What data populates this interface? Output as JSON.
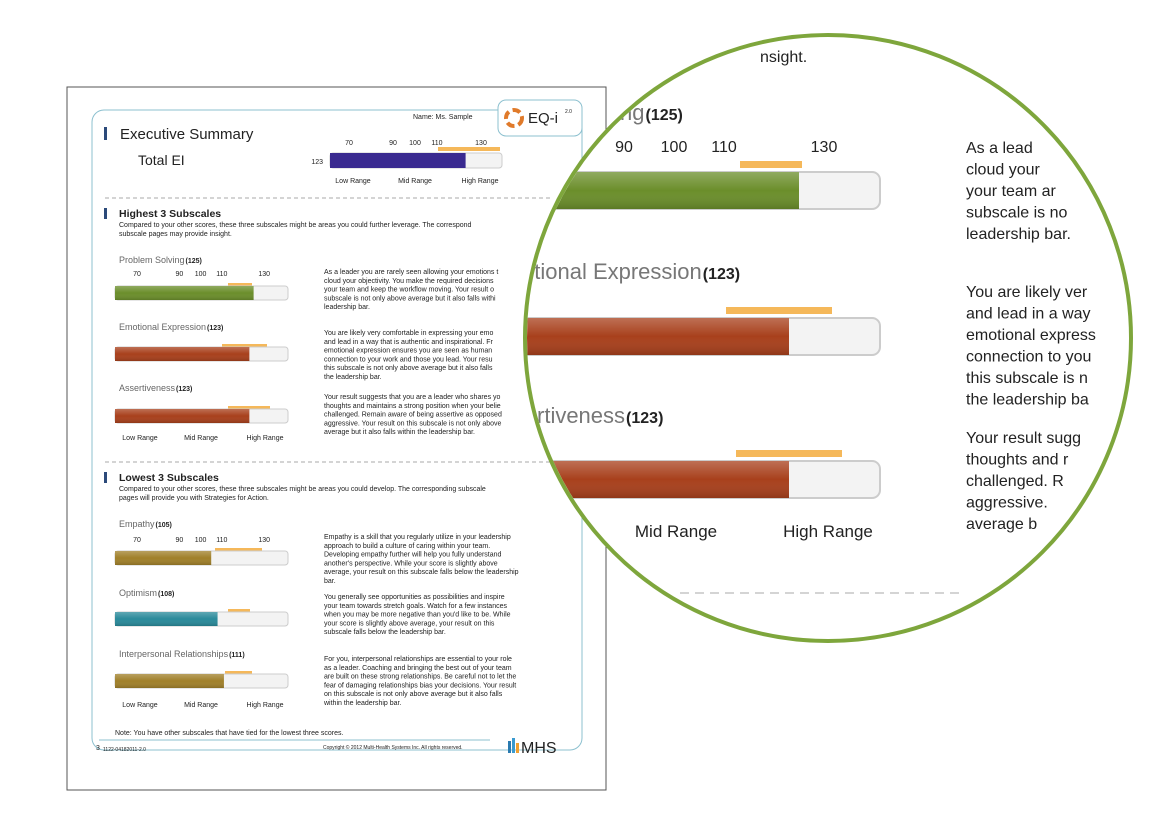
{
  "header": {
    "name": "Name: Ms. Sample",
    "logo": "EQ-i",
    "logo_sup": "2.0",
    "title": "Executive Summary",
    "subtitle": "Total EI"
  },
  "total_ei": {
    "score": 123,
    "score_label": "123",
    "ticks": [
      70,
      90,
      100,
      110,
      130
    ],
    "ranges": [
      "Low Range",
      "Mid Range",
      "High Range"
    ]
  },
  "highest": {
    "title": "Highest 3 Subscales",
    "description": [
      "Compared to your other scores, these three subscales might be areas you could further leverage. The correspond",
      "subscale pages may provide insight."
    ],
    "ticks": [
      70,
      90,
      100,
      110,
      130
    ],
    "ranges": [
      "Low Range",
      "Mid Range",
      "High Range"
    ],
    "subscales": [
      {
        "name": "Problem Solving",
        "score": 125,
        "score_label": "(125)",
        "text": [
          "As a leader you are rarely seen allowing your emotions t",
          "cloud your objectivity. You make the required decisions",
          "your team and keep the workflow moving. Your result o",
          "subscale is not only above average but it also falls withi",
          "leadership bar."
        ]
      },
      {
        "name": "Emotional Expression",
        "score": 123,
        "score_label": "(123)",
        "text": [
          "You are likely very comfortable in expressing your emo",
          "and lead in a way that is authentic and inspirational. Fr",
          "emotional expression ensures you are seen as human",
          "connection to your work and those you lead. Your resu",
          "this subscale is not only above average but it also falls",
          "the leadership bar."
        ]
      },
      {
        "name": "Assertiveness",
        "score": 123,
        "score_label": "(123)",
        "text": [
          "Your result suggests that you are a leader who shares yo",
          "thoughts and maintains a strong position when your belie",
          "challenged. Remain aware of being assertive as opposed",
          "aggressive. Your result on this subscale is not only above",
          "average but it also falls within the leadership bar."
        ]
      }
    ]
  },
  "lowest": {
    "title": "Lowest 3 Subscales",
    "description": [
      "Compared to your other scores, these three subscales might be areas you could develop. The corresponding subscale",
      "pages will provide you with Strategies for Action."
    ],
    "ticks": [
      70,
      90,
      100,
      110,
      130
    ],
    "ranges": [
      "Low Range",
      "Mid Range",
      "High Range"
    ],
    "subscales": [
      {
        "name": "Empathy",
        "score": 105,
        "score_label": "(105)",
        "text": [
          "Empathy is a skill that you regularly utilize in your leadership",
          "approach to build a culture of caring within your team.",
          "Developing empathy further will help you fully understand",
          "another's perspective. While your score is slightly above",
          "average, your result on this subscale falls below the leadership",
          "bar."
        ]
      },
      {
        "name": "Optimism",
        "score": 108,
        "score_label": "(108)",
        "text": [
          "You generally see opportunities as possibilities and inspire",
          "your team towards stretch goals. Watch for a few instances",
          "when you may be more negative than you'd like to be. While",
          "your score is slightly above average, your result on this",
          "subscale falls below the leadership bar."
        ]
      },
      {
        "name": "Interpersonal Relationships",
        "score": 111,
        "score_label": "(111)",
        "text": [
          "For you, interpersonal relationships are essential to your role",
          "as a leader. Coaching and bringing the best out of your team",
          "are built on these strong relationships. Be careful not to let the",
          "fear of damaging relationships bias your decisions. Your result",
          "on this subscale is not only above average but it also falls",
          "within the leadership bar."
        ]
      }
    ]
  },
  "footer": {
    "note": "Note: You have other subscales that have tied for the lowest three scores.",
    "page": "3",
    "code": "1122-04182011-2.0",
    "copyright": "Copyright © 2012 Multi-Health Systems Inc. All rights reserved.",
    "brand": "MHS"
  },
  "magnifier": {
    "top": "nsight.",
    "ticks": [
      90,
      100,
      110,
      130
    ],
    "ranges": [
      "Mid Range",
      "High Range"
    ],
    "labels": [
      {
        "name": "ng",
        "score_label": "(125)"
      },
      {
        "name": "otional Expression",
        "score_label": "(123)"
      },
      {
        "name": "rtiveness",
        "score_label": "(123)"
      }
    ],
    "paragraphs": [
      [
        "As a lead",
        "cloud your",
        "your team ar",
        "subscale is no",
        "leadership bar."
      ],
      [
        "You are likely ver",
        "and lead in a way",
        "emotional express",
        "connection to you",
        "this subscale is n",
        "the leadership ba"
      ],
      [
        "Your result sugg",
        "thoughts and r",
        "challenged. R",
        "aggressive.",
        "average b"
      ]
    ]
  }
}
